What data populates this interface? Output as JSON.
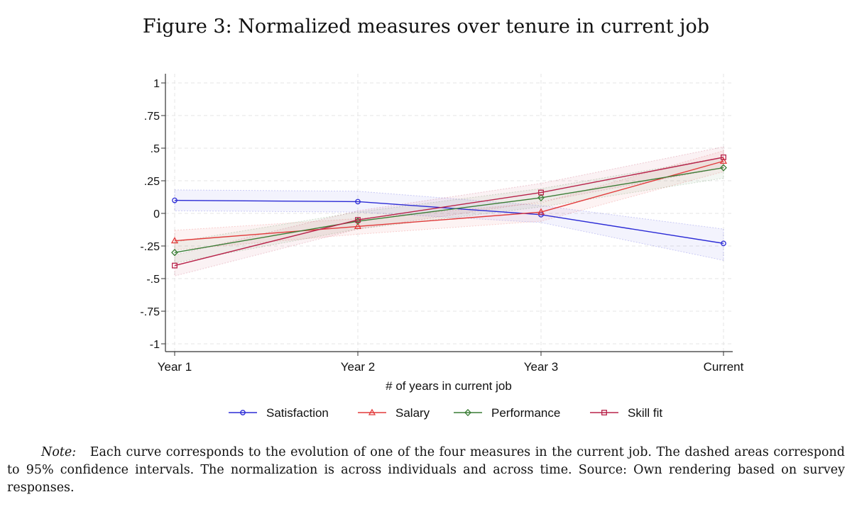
{
  "figure": {
    "title": "Figure 3: Normalized measures over tenure in current job",
    "note_label": "Note:",
    "note_text": "Each curve corresponds to the evolution of one of the four measures in the current job. The dashed areas correspond to 95% confidence intervals. The normalization is across individuals and across time. Source: Own rendering based on survey responses."
  },
  "chart_data": {
    "type": "line",
    "title": "",
    "xlabel": "# of years in current job",
    "ylabel": "",
    "categories": [
      "Year 1",
      "Year 2",
      "Year 3",
      "Current"
    ],
    "ylim": [
      -1,
      1
    ],
    "yticks": [
      1,
      0.75,
      0.5,
      0.25,
      0,
      -0.25,
      -0.5,
      -0.75,
      -1
    ],
    "ytick_labels": [
      "1",
      ".75",
      ".5",
      ".25",
      "0",
      "-.25",
      "-.5",
      "-.75",
      "-1"
    ],
    "grid": true,
    "legend_position": "bottom",
    "series": [
      {
        "name": "Satisfaction",
        "color": "#2b2bd6",
        "marker": "circle",
        "values": [
          0.1,
          0.09,
          -0.01,
          -0.23
        ],
        "ci_lower": [
          0.02,
          0.01,
          -0.07,
          -0.36
        ],
        "ci_upper": [
          0.18,
          0.17,
          0.06,
          -0.12
        ]
      },
      {
        "name": "Salary",
        "color": "#e23b3b",
        "marker": "triangle",
        "values": [
          -0.21,
          -0.1,
          0.01,
          0.4
        ],
        "ci_lower": [
          -0.28,
          -0.16,
          -0.06,
          0.32
        ],
        "ci_upper": [
          -0.13,
          -0.04,
          0.08,
          0.48
        ]
      },
      {
        "name": "Performance",
        "color": "#3a7d35",
        "marker": "diamond",
        "values": [
          -0.3,
          -0.06,
          0.12,
          0.35
        ],
        "ci_lower": [
          -0.38,
          -0.12,
          0.05,
          0.27
        ],
        "ci_upper": [
          -0.22,
          0.01,
          0.19,
          0.43
        ]
      },
      {
        "name": "Skill fit",
        "color": "#b8234a",
        "marker": "square",
        "values": [
          -0.4,
          -0.05,
          0.16,
          0.43
        ],
        "ci_lower": [
          -0.48,
          -0.12,
          0.09,
          0.35
        ],
        "ci_upper": [
          -0.32,
          0.02,
          0.23,
          0.51
        ]
      }
    ]
  }
}
